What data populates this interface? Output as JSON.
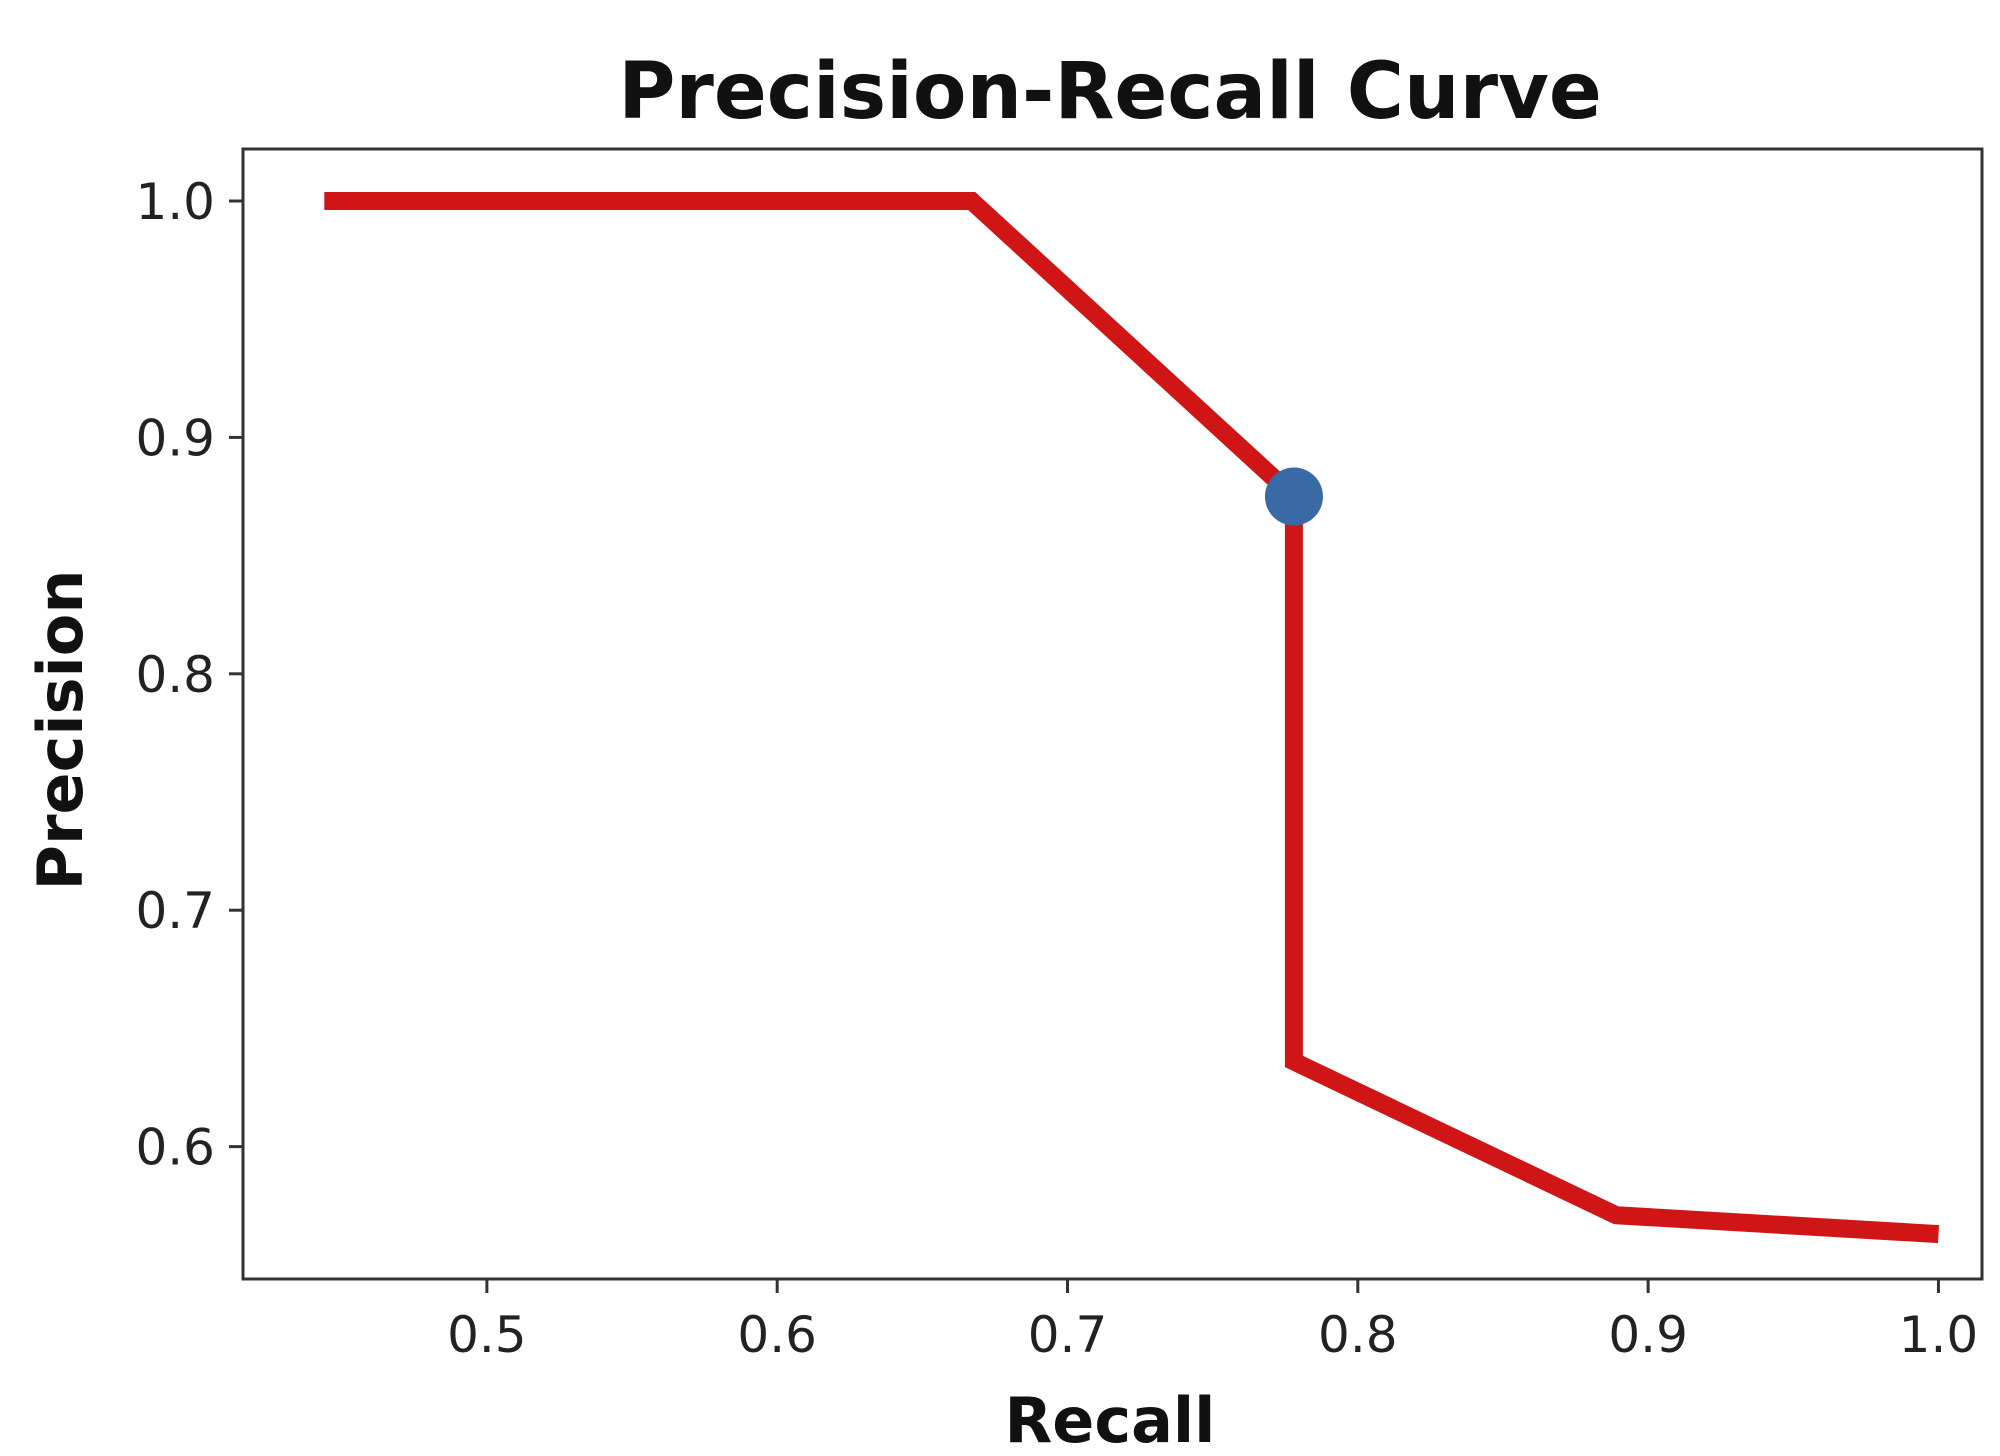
{
  "chart_data": {
    "type": "line",
    "title": "Precision-Recall Curve",
    "xlabel": "Recall",
    "ylabel": "Precision",
    "xlim": [
      0.416,
      1.015
    ],
    "ylim": [
      0.544,
      1.022
    ],
    "xticks": [
      0.5,
      0.6,
      0.7,
      0.8,
      0.9,
      1.0
    ],
    "xtick_labels": [
      "0.5",
      "0.6",
      "0.7",
      "0.8",
      "0.9",
      "1.0"
    ],
    "yticks": [
      0.6,
      0.7,
      0.8,
      0.9,
      1.0
    ],
    "ytick_labels": [
      "0.6",
      "0.7",
      "0.8",
      "0.9",
      "1.0"
    ],
    "grid": false,
    "legend": "none",
    "series": [
      {
        "color": "#d01517",
        "x": [
          0.444,
          0.667,
          0.778,
          0.778,
          0.889,
          1.0
        ],
        "y": [
          1.0,
          1.0,
          0.875,
          0.636,
          0.571,
          0.563
        ]
      }
    ],
    "highlight_point": {
      "x": 0.778,
      "y": 0.875,
      "color": "#3a6aa5"
    }
  }
}
